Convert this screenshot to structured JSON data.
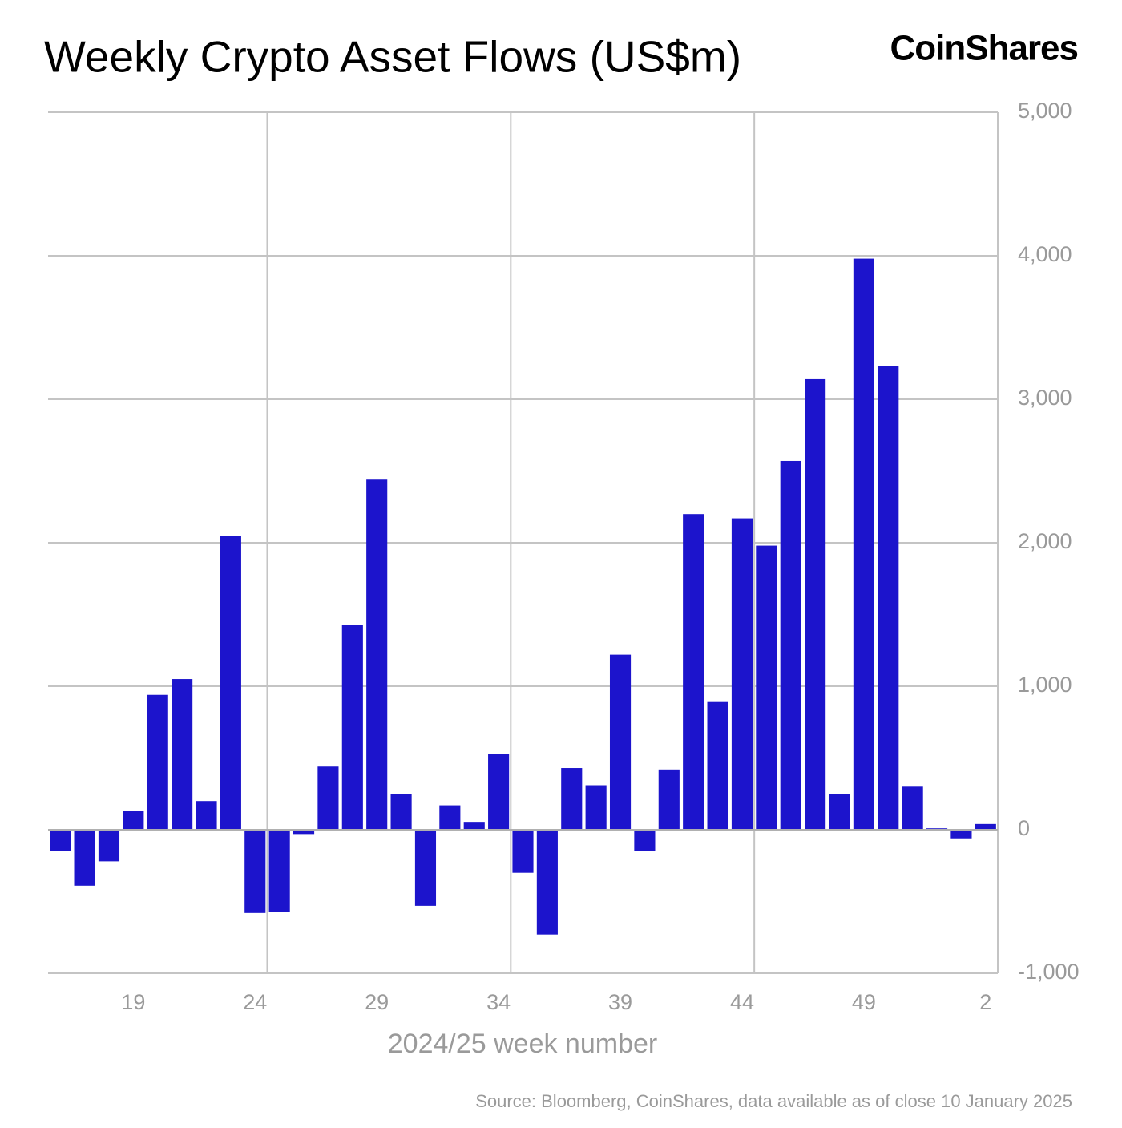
{
  "chart_data": {
    "type": "bar",
    "title": "Weekly Crypto Asset Flows (US$m)",
    "logo": "CoinShares",
    "xlabel": "2024/25 week number",
    "source": "Source: Bloomberg, CoinShares, data available as of close 10 January 2025",
    "categories": [
      null,
      null,
      null,
      "19",
      null,
      null,
      null,
      null,
      "24",
      null,
      null,
      null,
      null,
      "29",
      null,
      null,
      null,
      null,
      "34",
      null,
      null,
      null,
      null,
      "39",
      null,
      null,
      null,
      null,
      "44",
      null,
      null,
      null,
      null,
      "49",
      null,
      null,
      null,
      null,
      "2"
    ],
    "values": [
      -150,
      -390,
      -220,
      130,
      940,
      1050,
      200,
      2050,
      -580,
      -570,
      -30,
      440,
      1430,
      2440,
      250,
      -530,
      170,
      55,
      530,
      -300,
      -730,
      430,
      310,
      1220,
      -150,
      420,
      2200,
      890,
      2170,
      1980,
      2570,
      3140,
      250,
      3980,
      3230,
      300,
      10,
      -60,
      40
    ],
    "color": "#1c14cc",
    "ylim": [
      -1000,
      5000
    ],
    "yticks": [
      {
        "value": -1000,
        "label": "-1,000"
      },
      0,
      {
        "value": 1000,
        "label": "1,000"
      },
      {
        "value": 2000,
        "label": "2,000"
      },
      {
        "value": 3000,
        "label": "3,000"
      },
      {
        "value": 4000,
        "label": "4,000"
      },
      {
        "value": 5000,
        "label": "5,000"
      }
    ],
    "grid": true
  }
}
